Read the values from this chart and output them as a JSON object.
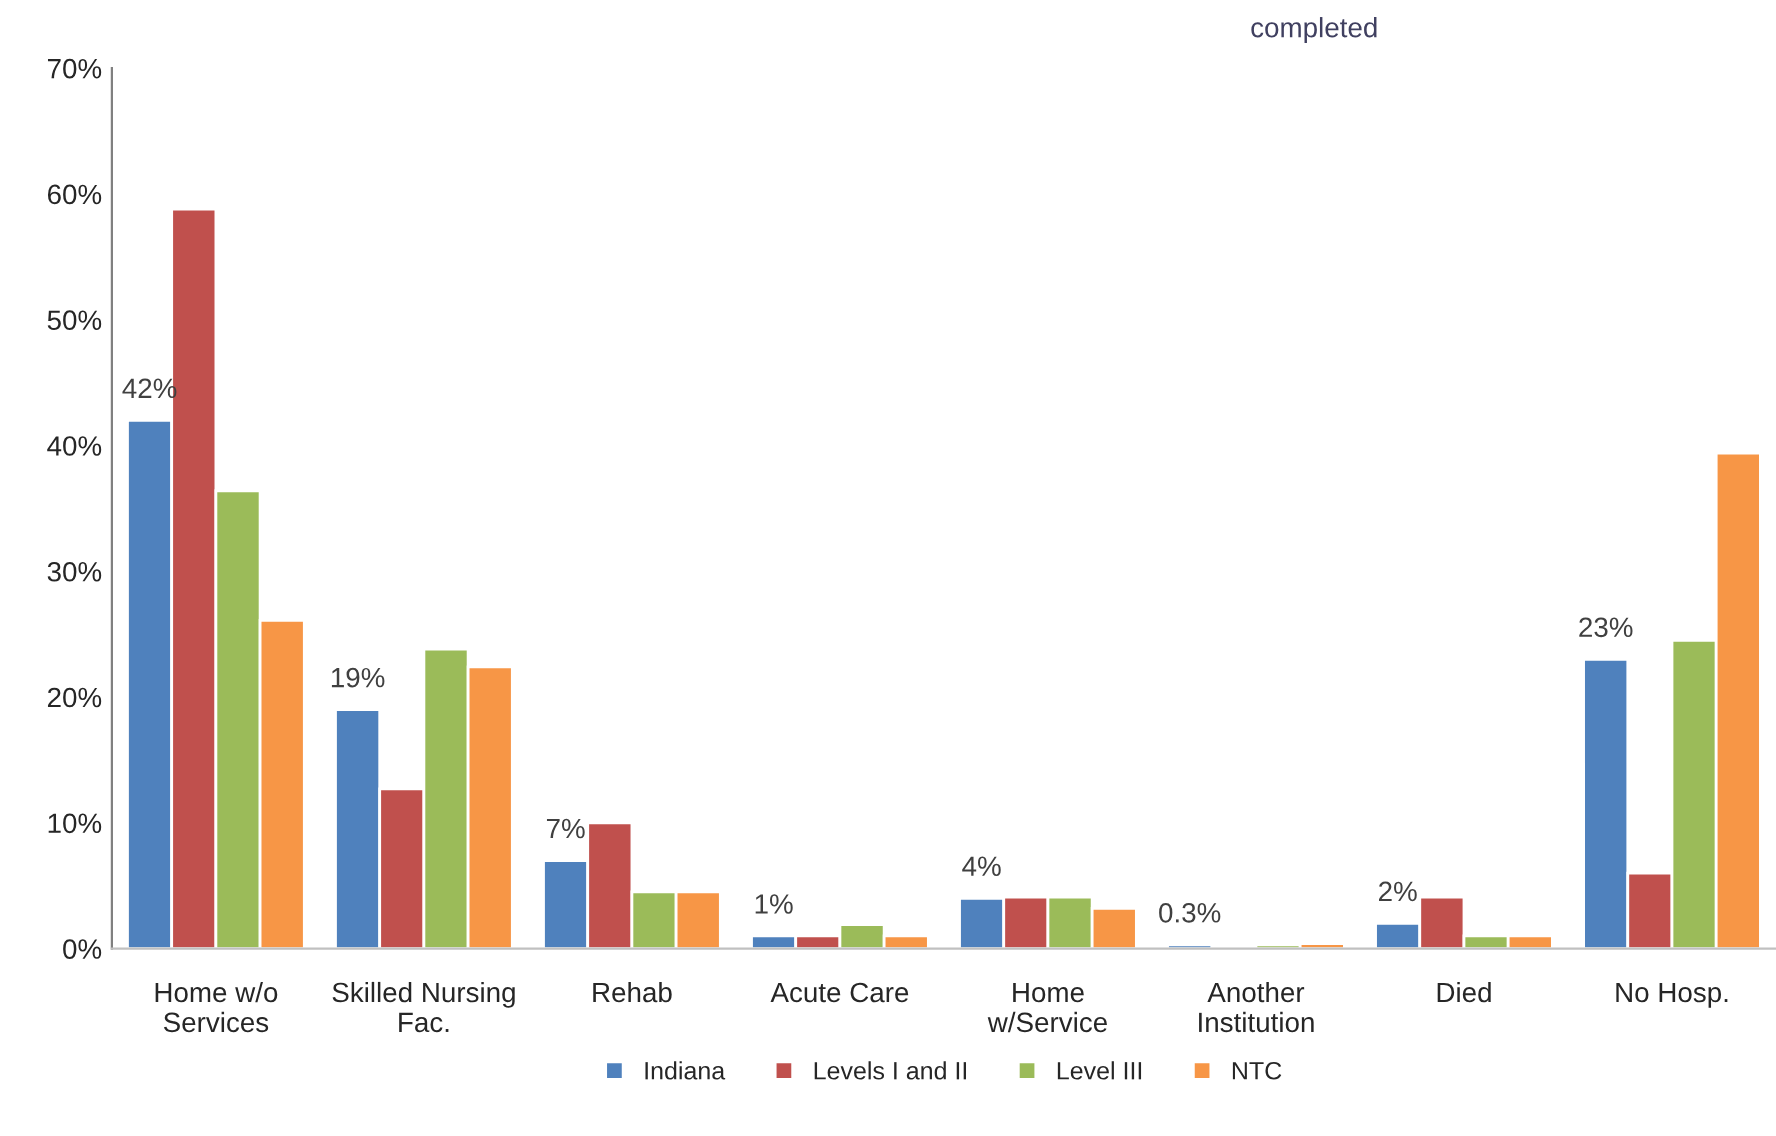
{
  "chart_data": {
    "type": "bar",
    "categories": [
      "Home w/o\nServices",
      "Skilled Nursing\nFac.",
      "Rehab",
      "Acute Care",
      "Home\nw/Service",
      "Another\nInstitution",
      "Died",
      "No Hosp."
    ],
    "series": [
      {
        "name": "Indiana",
        "color": "#4f81bd",
        "values": [
          42,
          19,
          7,
          1,
          4,
          0.3,
          2,
          23
        ],
        "value_labels": [
          "42%",
          "19%",
          "7%",
          "1%",
          "4%",
          "0.3%",
          "2%",
          "23%"
        ]
      },
      {
        "name": "Levels I and II",
        "color": "#c0504d",
        "values": [
          58.8,
          12.7,
          10.0,
          1.0,
          4.1,
          null,
          4.1,
          6.0
        ]
      },
      {
        "name": "Level III",
        "color": "#9bbb59",
        "values": [
          36.4,
          23.8,
          4.5,
          1.9,
          4.1,
          0.3,
          1.0,
          24.5
        ]
      },
      {
        "name": "NTC",
        "color": "#f79646",
        "values": [
          26.1,
          22.4,
          4.5,
          1.0,
          3.2,
          0.4,
          1.0,
          39.4
        ]
      }
    ],
    "ylim": [
      0,
      70
    ],
    "yticks": [
      {
        "value": 0,
        "label": "0%"
      },
      {
        "value": 10,
        "label": "10%"
      },
      {
        "value": 20,
        "label": "20%"
      },
      {
        "value": 30,
        "label": "30%"
      },
      {
        "value": 40,
        "label": "40%"
      },
      {
        "value": 50,
        "label": "50%"
      },
      {
        "value": 60,
        "label": "60%"
      },
      {
        "value": 70,
        "label": "70%"
      }
    ],
    "annotations": [
      "completed"
    ],
    "grid": false,
    "legend": "bottom"
  }
}
